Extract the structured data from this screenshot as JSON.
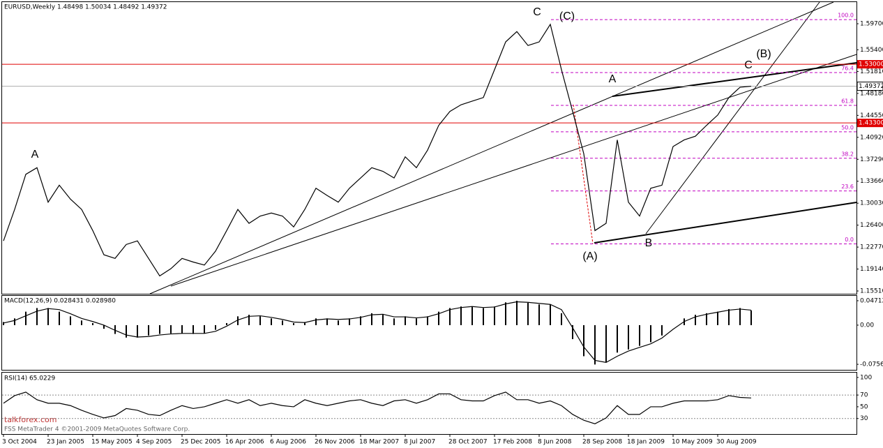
{
  "chart_data": [
    {
      "type": "line",
      "title": "EURUSD,Weekly  1.48498 1.50034 1.48492 1.49372",
      "x_axis_labels": [
        "3 Oct 2004",
        "23 Jan 2005",
        "15 May 2005",
        "4 Sep 2005",
        "25 Dec 2005",
        "16 Apr 2006",
        "6 Aug 2006",
        "26 Nov 2006",
        "18 Mar 2007",
        "8 Jul 2007",
        "28 Oct 2007",
        "17 Feb 2008",
        "8 Jun 2008",
        "28 Sep 2008",
        "18 Jan 2009",
        "10 May 2009",
        "30 Aug 2009"
      ],
      "series": [
        {
          "name": "EURUSD",
          "color": "#000000",
          "values": [
            1.238,
            1.29,
            1.348,
            1.359,
            1.302,
            1.33,
            1.307,
            1.29,
            1.255,
            1.215,
            1.209,
            1.232,
            1.238,
            1.209,
            1.18,
            1.192,
            1.209,
            1.203,
            1.198,
            1.221,
            1.255,
            1.29,
            1.267,
            1.279,
            1.284,
            1.279,
            1.261,
            1.29,
            1.325,
            1.313,
            1.302,
            1.325,
            1.342,
            1.359,
            1.353,
            1.342,
            1.377,
            1.359,
            1.388,
            1.429,
            1.452,
            1.463,
            1.469,
            1.475,
            1.521,
            1.567,
            1.584,
            1.561,
            1.567,
            1.596,
            1.521,
            1.452,
            1.382,
            1.255,
            1.267,
            1.405,
            1.302,
            1.279,
            1.325,
            1.33,
            1.394,
            1.405,
            1.411,
            1.429,
            1.446,
            1.475,
            1.492,
            1.49372
          ]
        }
      ],
      "ylim": [
        1.1505,
        1.6328
      ],
      "yticks": [
        {
          "value": 1.597,
          "label": "1.59700"
        },
        {
          "value": 1.554,
          "label": "1.55400"
        },
        {
          "value": 1.5181,
          "label": "1.51810"
        },
        {
          "value": 1.4818,
          "label": "1.48180"
        },
        {
          "value": 1.4455,
          "label": "1.44550"
        },
        {
          "value": 1.4092,
          "label": "1.40920"
        },
        {
          "value": 1.3729,
          "label": "1.37290"
        },
        {
          "value": 1.3366,
          "label": "1.33660"
        },
        {
          "value": 1.3003,
          "label": "1.30030"
        },
        {
          "value": 1.264,
          "label": "1.26400"
        },
        {
          "value": 1.2277,
          "label": "1.22770"
        },
        {
          "value": 1.1914,
          "label": "1.19140"
        },
        {
          "value": 1.1551,
          "label": "1.15510"
        }
      ],
      "levels": [
        {
          "value": 1.53,
          "label": "1.53000",
          "color": "#e00000"
        },
        {
          "value": 1.433,
          "label": "1.43300",
          "color": "#e00000"
        }
      ],
      "current_price": {
        "value": 1.49372,
        "label": "1.49372"
      },
      "fib_levels": [
        {
          "label": "100.0",
          "price": 1.6038
        },
        {
          "label": "76.4",
          "price": 1.5163
        },
        {
          "label": "61.8",
          "price": 1.4621
        },
        {
          "label": "50.0",
          "price": 1.4184
        },
        {
          "label": "38.2",
          "price": 1.3746
        },
        {
          "label": "23.6",
          "price": 1.3205
        },
        {
          "label": "0.0",
          "price": 1.233
        }
      ],
      "annotations": [
        "A",
        "C",
        "(C)",
        "A",
        "(A)",
        "B",
        "C",
        "(B)"
      ],
      "watermark": "FSS MetaTrader 4 ©2001-2009 MetaQuotes Software Corp.",
      "site": "talkforex.com"
    },
    {
      "type": "bar",
      "title": "MACD(12,26,9) 0.028431 0.028980",
      "series": [
        {
          "name": "MACD",
          "color": "#000000",
          "values": [
            0.006,
            0.013,
            0.026,
            0.033,
            0.033,
            0.026,
            0.017,
            0.009,
            0.004,
            -0.007,
            -0.017,
            -0.024,
            -0.024,
            -0.02,
            -0.017,
            -0.016,
            -0.016,
            -0.017,
            -0.016,
            -0.009,
            0.004,
            0.017,
            0.02,
            0.017,
            0.013,
            0.009,
            0.004,
            0.006,
            0.013,
            0.013,
            0.009,
            0.013,
            0.017,
            0.023,
            0.02,
            0.013,
            0.017,
            0.013,
            0.017,
            0.026,
            0.033,
            0.036,
            0.036,
            0.033,
            0.036,
            0.044,
            0.047,
            0.043,
            0.04,
            0.04,
            0.023,
            -0.027,
            -0.06,
            -0.076,
            -0.071,
            -0.053,
            -0.047,
            -0.04,
            -0.033,
            -0.02,
            0,
            0.013,
            0.02,
            0.023,
            0.026,
            0.031,
            0.033,
            0.028431
          ]
        },
        {
          "name": "Signal",
          "color": "#000000",
          "values": [
            0.004,
            0.009,
            0.018,
            0.027,
            0.032,
            0.03,
            0.022,
            0.013,
            0.007,
            0,
            -0.01,
            -0.019,
            -0.023,
            -0.022,
            -0.019,
            -0.017,
            -0.016,
            -0.016,
            -0.016,
            -0.012,
            -0.002,
            0.01,
            0.017,
            0.018,
            0.015,
            0.011,
            0.006,
            0.005,
            0.01,
            0.012,
            0.011,
            0.012,
            0.015,
            0.02,
            0.021,
            0.016,
            0.016,
            0.014,
            0.016,
            0.022,
            0.03,
            0.034,
            0.036,
            0.034,
            0.035,
            0.041,
            0.045,
            0.044,
            0.042,
            0.04,
            0.03,
            -0.005,
            -0.042,
            -0.068,
            -0.072,
            -0.06,
            -0.05,
            -0.043,
            -0.036,
            -0.025,
            -0.008,
            0.007,
            0.016,
            0.021,
            0.025,
            0.029,
            0.031,
            0.02898
          ]
        }
      ],
      "ylim": [
        -0.0863,
        0.0565
      ],
      "yticks": [
        0.04712,
        {
          "value": 0,
          "label": "0.00"
        },
        -0.07563
      ]
    },
    {
      "type": "line",
      "title": "RSI(14) 65.0229",
      "series": [
        {
          "name": "RSI",
          "color": "#000000",
          "values": [
            56,
            69,
            75,
            62,
            56,
            56,
            52,
            44,
            37,
            31,
            35,
            47,
            44,
            37,
            35,
            44,
            52,
            47,
            50,
            56,
            62,
            56,
            62,
            52,
            56,
            52,
            50,
            62,
            56,
            52,
            56,
            60,
            62,
            56,
            52,
            60,
            62,
            56,
            62,
            72,
            72,
            62,
            60,
            60,
            69,
            75,
            62,
            62,
            56,
            60,
            52,
            37,
            27,
            21,
            31,
            52,
            37,
            37,
            50,
            50,
            56,
            60,
            60,
            60,
            62,
            69,
            66,
            65.0229
          ]
        }
      ],
      "ylim": [
        3.5,
        108.2
      ],
      "yticks": [
        100,
        70,
        50,
        30
      ],
      "levels": [
        70,
        30
      ]
    }
  ]
}
